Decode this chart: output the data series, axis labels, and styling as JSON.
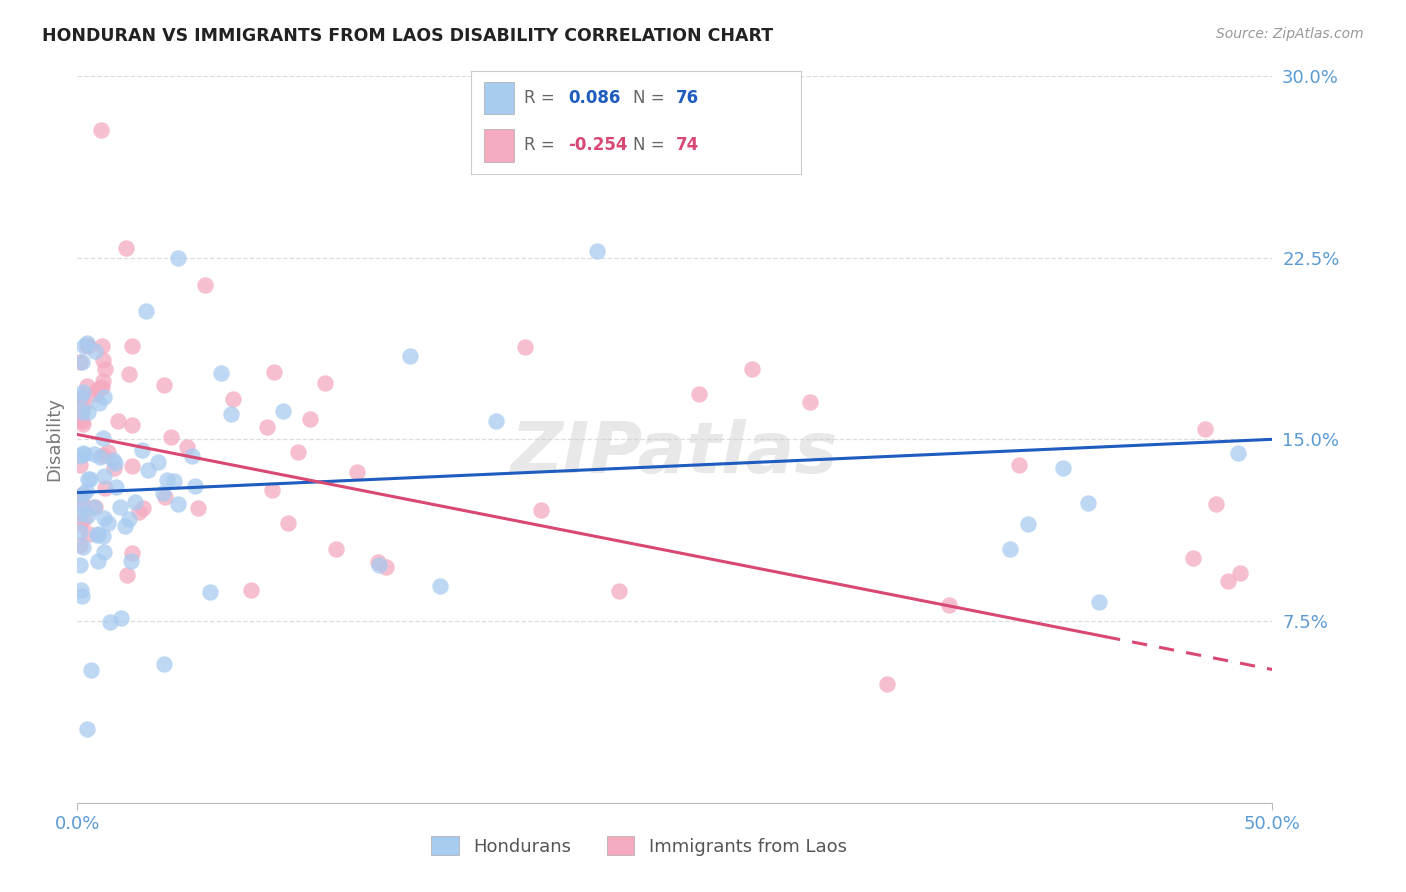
{
  "title": "HONDURAN VS IMMIGRANTS FROM LAOS DISABILITY CORRELATION CHART",
  "source": "Source: ZipAtlas.com",
  "ylabel": "Disability",
  "xlim": [
    0.0,
    0.5
  ],
  "ylim": [
    0.0,
    0.3
  ],
  "xtick_vals": [
    0.0,
    0.5
  ],
  "xtick_labels": [
    "0.0%",
    "50.0%"
  ],
  "ytick_vals": [
    0.0,
    0.075,
    0.15,
    0.225,
    0.3
  ],
  "ytick_labels_right": [
    "",
    "7.5%",
    "15.0%",
    "22.5%",
    "30.0%"
  ],
  "honduran_R": "0.086",
  "honduran_N": "76",
  "laos_R": "-0.254",
  "laos_N": "74",
  "blue_scatter_color": "#A8CBF0",
  "pink_scatter_color": "#F4AABF",
  "blue_line_color": "#1F5CBF",
  "pink_line_color": "#D94872",
  "title_color": "#222222",
  "axis_tick_color": "#5B9BD5",
  "ylabel_color": "#777777",
  "source_color": "#999999",
  "grid_color": "#DDDDDD",
  "watermark_color": "#CCCCCC"
}
